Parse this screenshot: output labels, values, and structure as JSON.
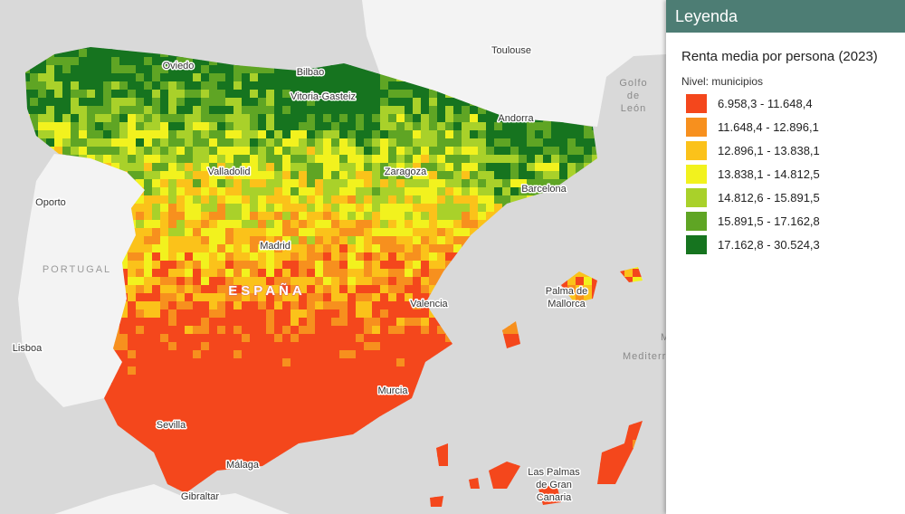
{
  "map_labels": [
    {
      "lines": [
        "Toulouse"
      ]
    },
    {
      "lines": [
        "Golfo",
        "de",
        "León"
      ]
    },
    {
      "lines": [
        "Oviedo"
      ]
    },
    {
      "lines": [
        "Bilbao"
      ]
    },
    {
      "lines": [
        "Vitoria-Gasteiz"
      ]
    },
    {
      "lines": [
        "Andorra"
      ]
    },
    {
      "lines": [
        "Valladolid"
      ]
    },
    {
      "lines": [
        "Zaragoza"
      ]
    },
    {
      "lines": [
        "Barcelona"
      ]
    },
    {
      "lines": [
        "Oporto"
      ]
    },
    {
      "lines": [
        "PORTUGAL"
      ]
    },
    {
      "lines": [
        "Madrid"
      ]
    },
    {
      "lines": [
        "ESPAÑA"
      ]
    },
    {
      "lines": [
        "Valencia"
      ]
    },
    {
      "lines": [
        "Palma de",
        "Mallorca"
      ]
    },
    {
      "lines": [
        "Lisboa"
      ]
    },
    {
      "lines": [
        "Mar",
        "Mediterráneo"
      ]
    },
    {
      "lines": [
        "Murcia"
      ]
    },
    {
      "lines": [
        "Sevilla"
      ]
    },
    {
      "lines": [
        "Málaga"
      ]
    },
    {
      "lines": [
        "Gibraltar"
      ]
    },
    {
      "lines": [
        "Las Palmas",
        "de Gran",
        "Canaria"
      ]
    }
  ],
  "legend": {
    "header": "Leyenda",
    "title": "Renta media por persona (2023)",
    "level": "Nivel: municipios",
    "items": [
      {
        "label": "6.958,3 - 11.648,4",
        "color": "#f4471c"
      },
      {
        "label": "11.648,4 - 12.896,1",
        "color": "#f7901e"
      },
      {
        "label": "12.896,1 - 13.838,1",
        "color": "#fbc21a"
      },
      {
        "label": "13.838,1 - 14.812,5",
        "color": "#f2f21e"
      },
      {
        "label": "14.812,6 - 15.891,5",
        "color": "#a9d12a"
      },
      {
        "label": "15.891,5 - 17.162,8",
        "color": "#5fa524"
      },
      {
        "label": "17.162,8 - 30.524,3",
        "color": "#16741f"
      }
    ]
  }
}
